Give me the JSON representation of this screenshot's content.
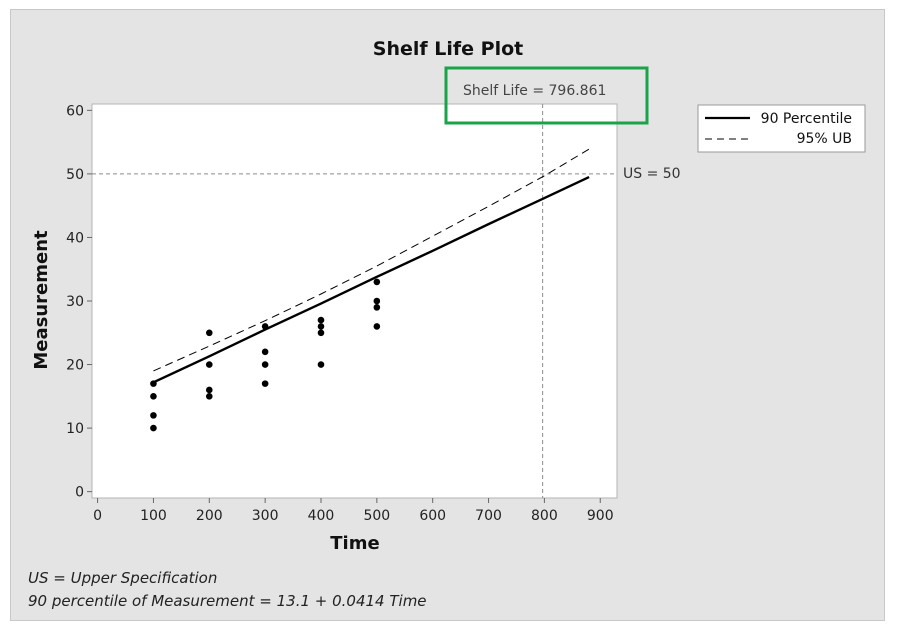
{
  "chart_data": {
    "type": "scatter",
    "title": "Shelf Life Plot",
    "xlabel": "Time",
    "ylabel": "Measurement",
    "xlim": [
      -10,
      930
    ],
    "ylim": [
      -1,
      61
    ],
    "xticks": [
      0,
      100,
      200,
      300,
      400,
      500,
      600,
      700,
      800,
      900
    ],
    "yticks": [
      0,
      10,
      20,
      30,
      40,
      50,
      60
    ],
    "grid": false,
    "legend_position": "top-right, outside plot",
    "points": [
      {
        "x": 100,
        "y": 17
      },
      {
        "x": 100,
        "y": 15
      },
      {
        "x": 100,
        "y": 12
      },
      {
        "x": 100,
        "y": 10
      },
      {
        "x": 200,
        "y": 25
      },
      {
        "x": 200,
        "y": 20
      },
      {
        "x": 200,
        "y": 16
      },
      {
        "x": 200,
        "y": 15
      },
      {
        "x": 300,
        "y": 26
      },
      {
        "x": 300,
        "y": 22
      },
      {
        "x": 300,
        "y": 20
      },
      {
        "x": 300,
        "y": 17
      },
      {
        "x": 400,
        "y": 27
      },
      {
        "x": 400,
        "y": 26
      },
      {
        "x": 400,
        "y": 25
      },
      {
        "x": 400,
        "y": 20
      },
      {
        "x": 500,
        "y": 33
      },
      {
        "x": 500,
        "y": 30
      },
      {
        "x": 500,
        "y": 29
      },
      {
        "x": 500,
        "y": 26
      }
    ],
    "series": [
      {
        "name": "90 Percentile",
        "style": "solid",
        "x": [
          100,
          200,
          300,
          400,
          500,
          600,
          700,
          800,
          880
        ],
        "y": [
          17.2,
          21.3,
          25.5,
          29.6,
          33.8,
          37.9,
          42.1,
          46.2,
          49.5
        ]
      },
      {
        "name": "95% UB",
        "style": "dashed",
        "x": [
          100,
          200,
          300,
          400,
          500,
          600,
          700,
          800,
          880
        ],
        "y": [
          19.0,
          22.9,
          26.9,
          31.1,
          35.5,
          40.2,
          44.9,
          49.7,
          53.9
        ]
      }
    ],
    "reference_lines": {
      "spec": {
        "y": 50,
        "label": "US = 50"
      },
      "shelf_life": {
        "x": 796.861
      }
    },
    "annotation": {
      "text": "Shelf Life = 796.861",
      "highlight_color": "#1aa34a"
    }
  },
  "footnotes": {
    "line1": "US = Upper Specification",
    "line2": "90 percentile of Measurement = 13.1 + 0.0414 Time"
  },
  "colors": {
    "background": "#e4e4e4",
    "plot_area": "#ffffff",
    "reference_line": "#8c8c8c",
    "data": "#000000"
  }
}
